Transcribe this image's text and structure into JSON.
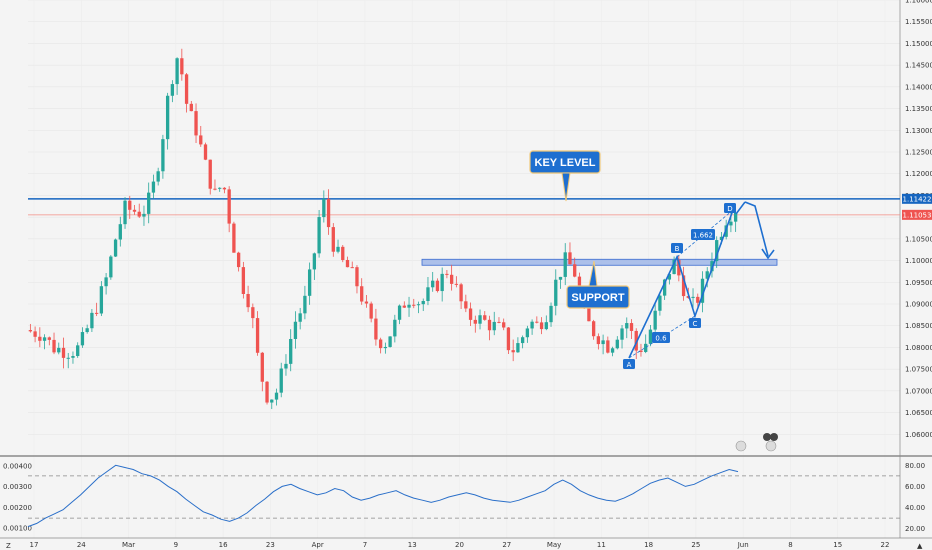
{
  "chart_data": {
    "type": "candlestick",
    "price_axis": {
      "min": 1.055,
      "max": 1.16,
      "ticks": [
        "1.16000",
        "1.15500",
        "1.15000",
        "1.14500",
        "1.14000",
        "1.13500",
        "1.13000",
        "1.12500",
        "1.12000",
        "1.11500",
        "1.11000",
        "1.10500",
        "1.10000",
        "1.09500",
        "1.09000",
        "1.08500",
        "1.08000",
        "1.07500",
        "1.07000",
        "1.06500",
        "1.06000"
      ]
    },
    "time_axis": {
      "labels": [
        "17",
        "24",
        "Mar",
        "9",
        "16",
        "23",
        "Apr",
        "7",
        "13",
        "20",
        "27",
        "May",
        "11",
        "18",
        "25",
        "Jun",
        "8",
        "15",
        "22"
      ]
    },
    "price_tags": {
      "key_level": "1.11422",
      "current": "1.11053"
    },
    "colors": {
      "up": "#26a69a",
      "down": "#ef5350",
      "drawing": "#1e6fd0",
      "key_line": "#1565c0",
      "current_line": "#f28b82",
      "support_fill": "#9fb6e8",
      "oscillator": "#2a6fc9"
    },
    "annotations": {
      "key_level_label": "KEY LEVEL",
      "support_label": "SUPPORT",
      "ratio_1": "1.662",
      "ratio_2": "0.6",
      "points": [
        "A",
        "B",
        "C",
        "D"
      ],
      "key_level_price": 1.11422,
      "support_low": 1.099,
      "support_high": 1.1003
    },
    "ohlc_path": [
      1.084,
      1.0835,
      1.083,
      1.08,
      1.0795,
      1.079,
      1.08,
      1.085,
      1.09,
      1.096,
      1.105,
      1.112,
      1.1115,
      1.111,
      1.115,
      1.125,
      1.14,
      1.148,
      1.135,
      1.13,
      1.122,
      1.115,
      1.118,
      1.105,
      1.095,
      1.09,
      1.075,
      1.068,
      1.07,
      1.078,
      1.086,
      1.09,
      1.1,
      1.115,
      1.105,
      1.1,
      1.098,
      1.094,
      1.088,
      1.082,
      1.081,
      1.085,
      1.09,
      1.092,
      1.09,
      1.093,
      1.095,
      1.098,
      1.093,
      1.087,
      1.087,
      1.086,
      1.085,
      1.084,
      1.079,
      1.081,
      1.086,
      1.085,
      1.088,
      1.095,
      1.1,
      1.098,
      1.088,
      1.084,
      1.082,
      1.08,
      1.084,
      1.086,
      1.079,
      1.081,
      1.087,
      1.094,
      1.1,
      1.095,
      1.089,
      1.092,
      1.099,
      1.105,
      1.11,
      1.112
    ],
    "oscillator": {
      "left_ticks": [
        "0.00400",
        "0.00300",
        "0.00200",
        "0.00100"
      ],
      "right_ticks": [
        "80.00",
        "60.00",
        "40.00",
        "20.00"
      ],
      "upper_band": 70,
      "lower_band": 30,
      "min": 15,
      "max": 85,
      "values": [
        22,
        25,
        30,
        34,
        38,
        45,
        52,
        60,
        68,
        74,
        80,
        78,
        76,
        72,
        70,
        66,
        60,
        55,
        48,
        42,
        36,
        33,
        29,
        27,
        30,
        35,
        42,
        48,
        55,
        60,
        62,
        58,
        55,
        52,
        54,
        58,
        56,
        50,
        47,
        49,
        52,
        54,
        56,
        52,
        49,
        47,
        45,
        47,
        50,
        52,
        54,
        52,
        49,
        47,
        46,
        45,
        47,
        50,
        53,
        56,
        62,
        66,
        62,
        56,
        52,
        49,
        47,
        46,
        49,
        53,
        58,
        63,
        66,
        68,
        64,
        60,
        62,
        66,
        70,
        73,
        76,
        74
      ]
    },
    "corner_label": "Z",
    "end_label": "▲"
  }
}
